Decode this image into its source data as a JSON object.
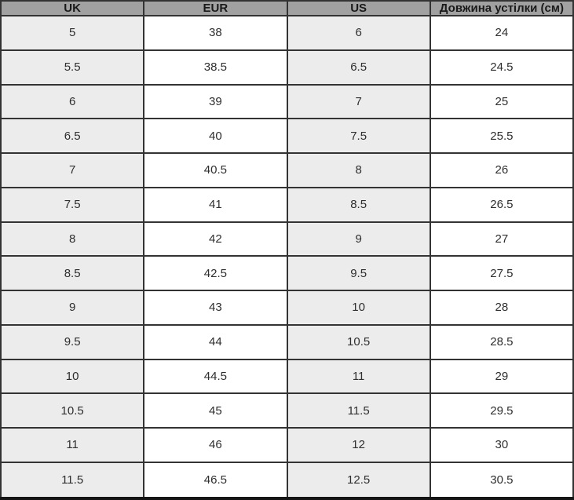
{
  "table": {
    "name": "shoe-size-conversion-table",
    "columns": [
      {
        "key": "uk",
        "label": "UK"
      },
      {
        "key": "eur",
        "label": "EUR"
      },
      {
        "key": "us",
        "label": "US"
      },
      {
        "key": "insole",
        "label": "Довжина устілки (см)"
      }
    ],
    "rows": [
      {
        "uk": "5",
        "eur": "38",
        "us": "6",
        "insole": "24"
      },
      {
        "uk": "5.5",
        "eur": "38.5",
        "us": "6.5",
        "insole": "24.5"
      },
      {
        "uk": "6",
        "eur": "39",
        "us": "7",
        "insole": "25"
      },
      {
        "uk": "6.5",
        "eur": "40",
        "us": "7.5",
        "insole": "25.5"
      },
      {
        "uk": "7",
        "eur": "40.5",
        "us": "8",
        "insole": "26"
      },
      {
        "uk": "7.5",
        "eur": "41",
        "us": "8.5",
        "insole": "26.5"
      },
      {
        "uk": "8",
        "eur": "42",
        "us": "9",
        "insole": "27"
      },
      {
        "uk": "8.5",
        "eur": "42.5",
        "us": "9.5",
        "insole": "27.5"
      },
      {
        "uk": "9",
        "eur": "43",
        "us": "10",
        "insole": "28"
      },
      {
        "uk": "9.5",
        "eur": "44",
        "us": "10.5",
        "insole": "28.5"
      },
      {
        "uk": "10",
        "eur": "44.5",
        "us": "11",
        "insole": "29"
      },
      {
        "uk": "10.5",
        "eur": "45",
        "us": "11.5",
        "insole": "29.5"
      },
      {
        "uk": "11",
        "eur": "46",
        "us": "12",
        "insole": "30"
      },
      {
        "uk": "11.5",
        "eur": "46.5",
        "us": "12.5",
        "insole": "30.5"
      }
    ],
    "colors": {
      "header_bg": "#a1a1a1",
      "striped_column_bg": "#ececec",
      "plain_column_bg": "#ffffff",
      "grid_border": "#333333",
      "bottom_border": "#151515",
      "text": "#2e2e2e"
    }
  }
}
